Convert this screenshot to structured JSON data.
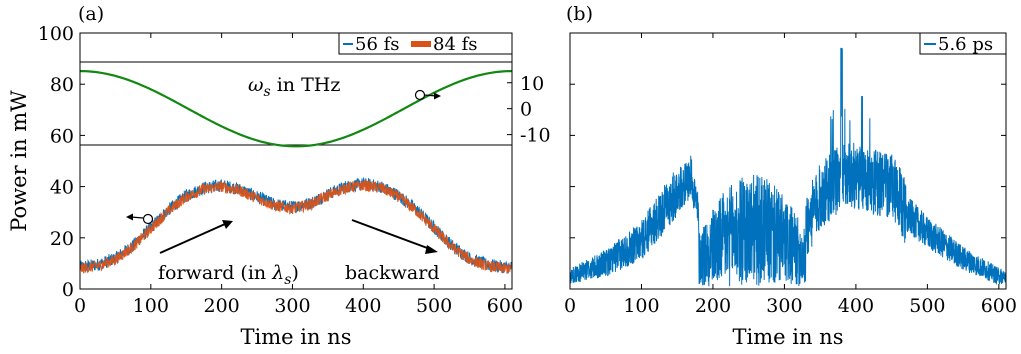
{
  "chart_data": [
    {
      "panel": "(a)",
      "type": "line",
      "xlabel": "Time in ns",
      "ylabel": "Power in mW",
      "xlim": [
        0,
        610
      ],
      "ylim": [
        0,
        100
      ],
      "xticks": [
        0,
        100,
        200,
        300,
        400,
        500,
        600
      ],
      "yticks": [
        0,
        20,
        40,
        60,
        80,
        100
      ],
      "legend": {
        "placement": "top-right",
        "entries": [
          "56 fs",
          "84 fs"
        ]
      },
      "series": [
        {
          "name": "56 fs",
          "color": "#0072BD",
          "x": [
            0,
            25,
            50,
            75,
            100,
            125,
            150,
            175,
            200,
            225,
            250,
            275,
            300,
            325,
            350,
            375,
            400,
            425,
            450,
            475,
            500,
            525,
            550,
            575,
            600,
            610
          ],
          "y": [
            8.5,
            9.5,
            12,
            17,
            24,
            31,
            36.5,
            39.5,
            40.5,
            39,
            36,
            33,
            32,
            33.5,
            37,
            40,
            41,
            40,
            36.5,
            31,
            24,
            17,
            12,
            9.5,
            8.5,
            8.5
          ],
          "noise_amplitude": 2.5
        },
        {
          "name": "84 fs",
          "color": "#D95319",
          "x": [
            0,
            25,
            50,
            75,
            100,
            125,
            150,
            175,
            200,
            225,
            250,
            275,
            300,
            325,
            350,
            375,
            400,
            425,
            450,
            475,
            500,
            525,
            550,
            575,
            600,
            610
          ],
          "y": [
            8,
            9,
            11.5,
            16.5,
            23.5,
            30.5,
            36,
            39,
            40,
            38.5,
            35.5,
            32.5,
            31.5,
            33,
            36.5,
            39.5,
            40.5,
            39.5,
            36,
            30.5,
            23.5,
            16.5,
            11.5,
            9,
            8,
            8
          ],
          "noise_amplitude": 2.2
        }
      ],
      "inset": {
        "ylabel": "ωs in THz",
        "ylim": [
          -14,
          18
        ],
        "yticks": [
          10,
          0,
          -10
        ],
        "ytick_labels": [
          "10",
          "0",
          "-10"
        ],
        "series": {
          "color": "#118811",
          "x": [
            0,
            610
          ],
          "formula": "cosine",
          "amplitude": 14.5,
          "offset": 0,
          "period": 610
        }
      },
      "annotations": {
        "forward": "forward (in λs)",
        "backward": "backward",
        "inset_label": "ωs in THz"
      }
    },
    {
      "panel": "(b)",
      "type": "line",
      "xlabel": "Time in ns",
      "xlim": [
        0,
        610
      ],
      "xticks": [
        0,
        100,
        200,
        300,
        400,
        500,
        600
      ],
      "legend": {
        "placement": "top-right",
        "entries": [
          "5.6 ps"
        ]
      },
      "series": [
        {
          "name": "5.6 ps",
          "color": "#0072BD",
          "envelope_x": [
            0,
            50,
            100,
            150,
            170,
            180,
            200,
            250,
            300,
            350,
            380,
            400,
            450,
            470,
            500,
            550,
            600,
            610
          ],
          "envelope_y": [
            0.05,
            0.1,
            0.19,
            0.38,
            0.44,
            0.28,
            0.06,
            0.06,
            0.06,
            0.36,
            0.44,
            0.44,
            0.4,
            0.3,
            0.22,
            0.12,
            0.05,
            0.05
          ],
          "noise_amplitude": "high",
          "peak_x": 380,
          "peak_y": 0.94
        }
      ]
    }
  ],
  "panel_labels": {
    "a": "(a)",
    "b": "(b)"
  },
  "colors": {
    "blue": "#0072BD",
    "orange": "#D95319",
    "green": "#118811"
  }
}
